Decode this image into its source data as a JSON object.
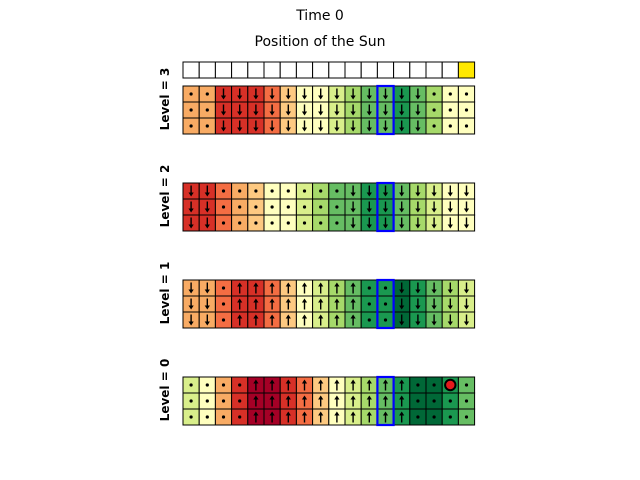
{
  "title": "Time 0",
  "sun_title": "Position of the Sun",
  "sun": {
    "columns": 18,
    "active_index": 17,
    "active_color": "#ffe800"
  },
  "agent": {
    "level": 0,
    "row": 0,
    "col": 16,
    "color": "#e41a1c"
  },
  "highlight": {
    "col": 12,
    "color": "#0000ff"
  },
  "levels": [
    {
      "label": "Level = 3",
      "colors": [
        "#f8ab64",
        "#f8ab64",
        "#d73027",
        "#d73027",
        "#d73027",
        "#f46d43",
        "#fdc981",
        "#ffffbf",
        "#ffffbf",
        "#d9ef8b",
        "#a6d96a",
        "#66bd63",
        "#66bd63",
        "#1a9850",
        "#66bd63",
        "#a6d96a",
        "#ffffbf",
        "#ffffbf"
      ],
      "rows": [
        [
          "dot",
          "dot",
          "down",
          "down",
          "down",
          "down",
          "down",
          "down",
          "down",
          "down",
          "down",
          "down",
          "down",
          "down",
          "down",
          "dot",
          "dot",
          "dot"
        ],
        [
          "dot",
          "dot",
          "down",
          "down",
          "down",
          "down",
          "down",
          "down",
          "down",
          "down",
          "down",
          "down",
          "down",
          "down",
          "down",
          "dot",
          "dot",
          "dot"
        ],
        [
          "dot",
          "dot",
          "down",
          "down",
          "down",
          "down",
          "down",
          "down",
          "down",
          "down",
          "down",
          "down",
          "down",
          "down",
          "down",
          "dot",
          "dot",
          "dot"
        ]
      ]
    },
    {
      "label": "Level = 2",
      "colors": [
        "#d73027",
        "#d73027",
        "#f46d43",
        "#f8ab64",
        "#fdc981",
        "#ffffbf",
        "#ffffbf",
        "#d9ef8b",
        "#a6d96a",
        "#66bd63",
        "#66bd63",
        "#1a9850",
        "#1a9850",
        "#66bd63",
        "#a6d96a",
        "#d9ef8b",
        "#ffffbf",
        "#ffffbf"
      ],
      "rows": [
        [
          "down",
          "down",
          "dot",
          "dot",
          "dot",
          "dot",
          "dot",
          "dot",
          "dot",
          "dot",
          "down",
          "down",
          "down",
          "down",
          "down",
          "down",
          "down",
          "down"
        ],
        [
          "down",
          "down",
          "dot",
          "dot",
          "dot",
          "dot",
          "dot",
          "dot",
          "dot",
          "dot",
          "down",
          "down",
          "down",
          "down",
          "down",
          "down",
          "down",
          "down"
        ],
        [
          "down",
          "down",
          "dot",
          "dot",
          "dot",
          "dot",
          "dot",
          "dot",
          "dot",
          "dot",
          "down",
          "down",
          "down",
          "down",
          "down",
          "down",
          "down",
          "down"
        ]
      ]
    },
    {
      "label": "Level = 1",
      "colors": [
        "#f8ab64",
        "#f8ab64",
        "#f46d43",
        "#d73027",
        "#d73027",
        "#f46d43",
        "#fdc981",
        "#ffffbf",
        "#d9ef8b",
        "#a6d96a",
        "#66bd63",
        "#1a9850",
        "#1a9850",
        "#006837",
        "#1a9850",
        "#66bd63",
        "#a6d96a",
        "#d9ef8b"
      ],
      "rows": [
        [
          "down",
          "down",
          "dot",
          "up",
          "up",
          "up",
          "up",
          "up",
          "up",
          "up",
          "up",
          "dot",
          "dot",
          "down",
          "down",
          "down",
          "down",
          "down"
        ],
        [
          "down",
          "down",
          "dot",
          "up",
          "up",
          "up",
          "up",
          "up",
          "up",
          "up",
          "up",
          "dot",
          "dot",
          "down",
          "down",
          "down",
          "down",
          "down"
        ],
        [
          "down",
          "down",
          "dot",
          "up",
          "up",
          "up",
          "up",
          "up",
          "up",
          "up",
          "up",
          "dot",
          "dot",
          "down",
          "down",
          "down",
          "down",
          "down"
        ]
      ]
    },
    {
      "label": "Level = 0",
      "colors": [
        "#d9ef8b",
        "#ffffbf",
        "#f8ab64",
        "#d73027",
        "#a50026",
        "#a50026",
        "#d73027",
        "#f46d43",
        "#fdc981",
        "#ffffbf",
        "#d9ef8b",
        "#a6d96a",
        "#66bd63",
        "#1a9850",
        "#006837",
        "#006837",
        "#1a9850",
        "#66bd63"
      ],
      "rows": [
        [
          "dot",
          "dot",
          "dot",
          "dot",
          "up",
          "up",
          "up",
          "up",
          "up",
          "up",
          "up",
          "up",
          "up",
          "up",
          "dot",
          "dot",
          "dot",
          "dot"
        ],
        [
          "dot",
          "dot",
          "dot",
          "dot",
          "up",
          "up",
          "up",
          "up",
          "up",
          "up",
          "up",
          "up",
          "up",
          "up",
          "dot",
          "dot",
          "dot",
          "dot"
        ],
        [
          "dot",
          "dot",
          "dot",
          "dot",
          "up",
          "up",
          "up",
          "up",
          "up",
          "up",
          "up",
          "up",
          "up",
          "up",
          "dot",
          "dot",
          "dot",
          "dot"
        ]
      ]
    }
  ]
}
